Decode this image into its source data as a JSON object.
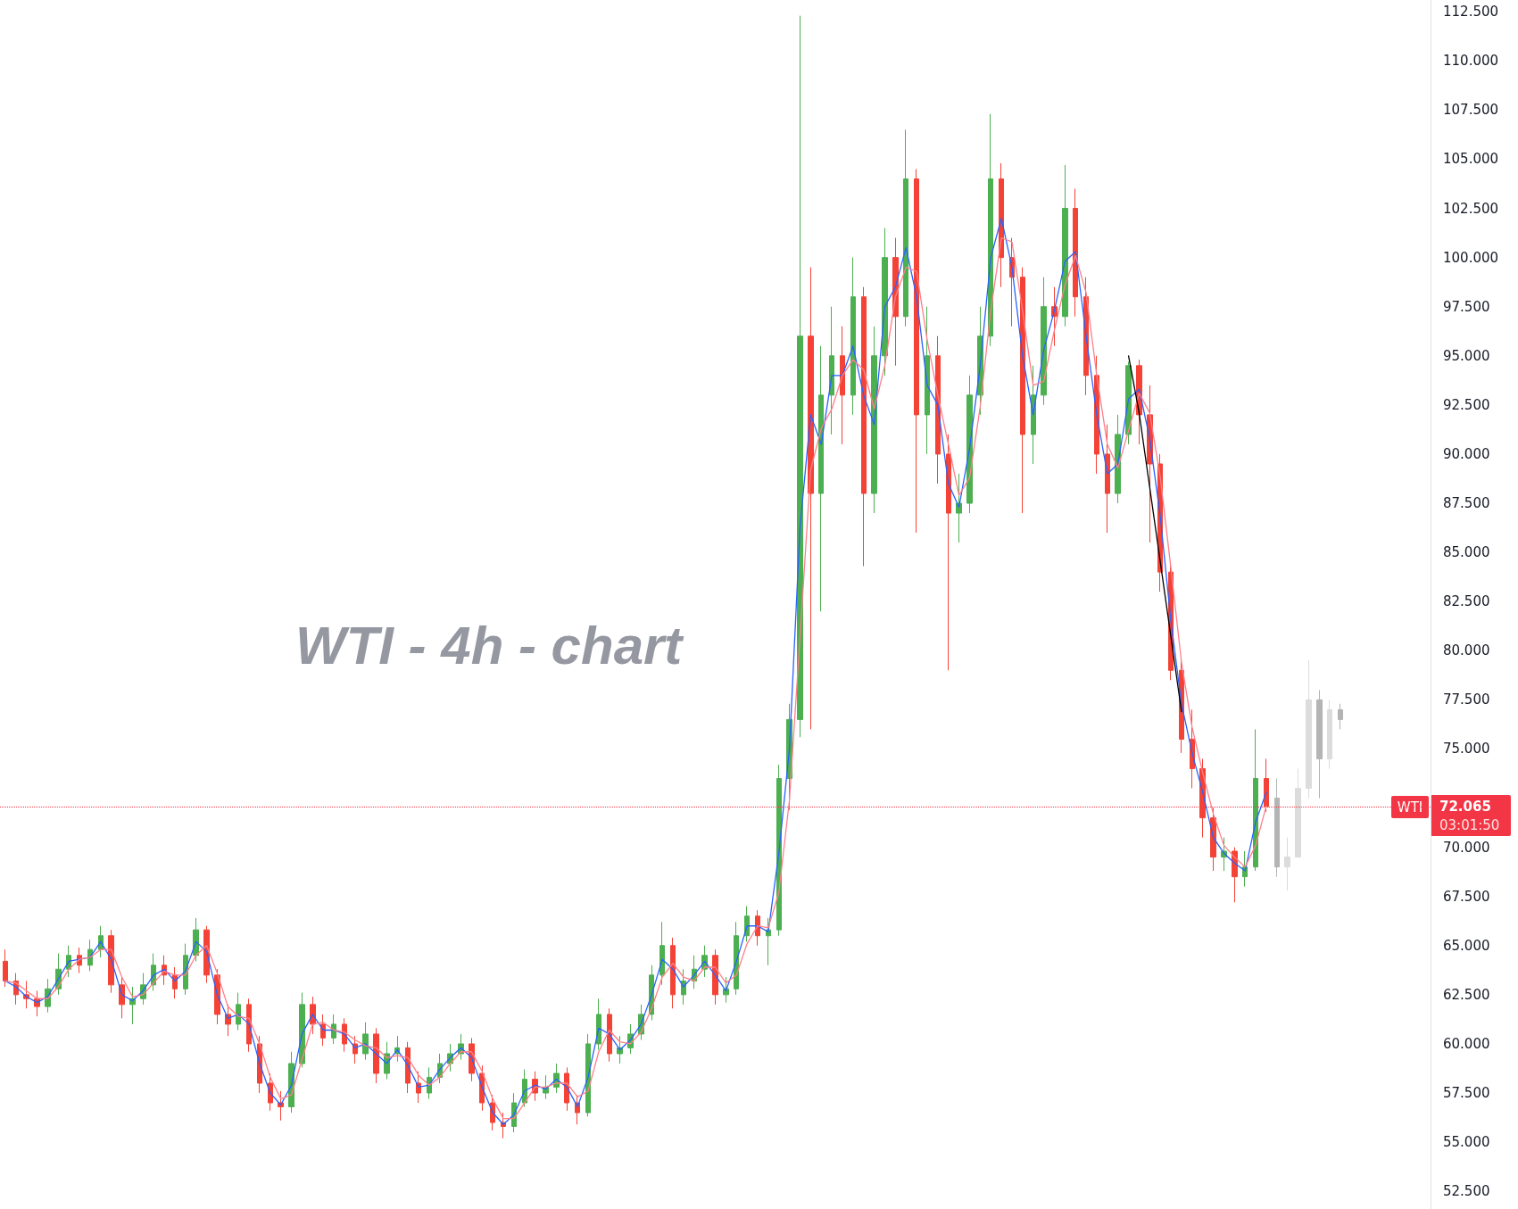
{
  "chart_data": {
    "type": "candlestick",
    "title": "WTI - 4h - chart",
    "categories": [
      null,
      null,
      null,
      null,
      null,
      null,
      null,
      null,
      null,
      null,
      null,
      null,
      null,
      null,
      null,
      null,
      null,
      null,
      null,
      null,
      null,
      null,
      null,
      null,
      null,
      null,
      null,
      null,
      null,
      null,
      null,
      null,
      null,
      null,
      null,
      null,
      null,
      null,
      null,
      null,
      null,
      null,
      null,
      null,
      null,
      null,
      null,
      null,
      null,
      null,
      null,
      null,
      null,
      null,
      null,
      null,
      null,
      null,
      null,
      null,
      null,
      null,
      null,
      null,
      null,
      null,
      null,
      null,
      null,
      null,
      null,
      null,
      null,
      null,
      null,
      null,
      null,
      null,
      null,
      null,
      null,
      null,
      null,
      null,
      null,
      null,
      null,
      null,
      null,
      null,
      null,
      null,
      null,
      null,
      null,
      null,
      null,
      null,
      null,
      null,
      null,
      null,
      null,
      null,
      null,
      null,
      null,
      null,
      null,
      null,
      null,
      null,
      null,
      null,
      null,
      null,
      null,
      null,
      null,
      null,
      null,
      null,
      null,
      null,
      null,
      null,
      null,
      null,
      null,
      null,
      null,
      null,
      null,
      null,
      null
    ],
    "series": [
      {
        "ohlc": [
          [
            64.2,
            64.8,
            62.9,
            63.2
          ],
          [
            63.2,
            63.6,
            62.0,
            62.5
          ],
          [
            62.5,
            63.2,
            61.8,
            62.3
          ],
          [
            62.3,
            62.7,
            61.4,
            61.9
          ],
          [
            61.9,
            63.3,
            61.6,
            62.8
          ],
          [
            62.8,
            64.6,
            62.5,
            63.8
          ],
          [
            63.8,
            65.0,
            63.4,
            64.5
          ],
          [
            64.5,
            64.9,
            63.6,
            64.0
          ],
          [
            64.0,
            65.3,
            63.7,
            64.8
          ],
          [
            64.8,
            66.0,
            64.4,
            65.5
          ],
          [
            65.5,
            65.8,
            62.6,
            63.0
          ],
          [
            63.0,
            63.4,
            61.3,
            62.0
          ],
          [
            62.0,
            62.9,
            61.0,
            62.3
          ],
          [
            62.3,
            63.6,
            62.0,
            63.0
          ],
          [
            63.0,
            64.6,
            62.7,
            64.0
          ],
          [
            64.0,
            64.5,
            63.0,
            63.5
          ],
          [
            63.5,
            63.9,
            62.3,
            62.8
          ],
          [
            62.8,
            65.1,
            62.5,
            64.5
          ],
          [
            64.5,
            66.4,
            64.2,
            65.8
          ],
          [
            65.8,
            66.0,
            63.1,
            63.5
          ],
          [
            63.5,
            63.8,
            61.0,
            61.5
          ],
          [
            61.5,
            62.0,
            60.4,
            61.0
          ],
          [
            61.0,
            62.6,
            60.7,
            62.0
          ],
          [
            62.0,
            62.3,
            59.6,
            60.0
          ],
          [
            60.0,
            60.4,
            57.5,
            58.0
          ],
          [
            58.0,
            58.5,
            56.6,
            57.0
          ],
          [
            57.0,
            57.6,
            56.1,
            56.8
          ],
          [
            56.8,
            59.6,
            56.5,
            59.0
          ],
          [
            59.0,
            62.6,
            58.8,
            62.0
          ],
          [
            62.0,
            62.4,
            60.5,
            61.0
          ],
          [
            61.0,
            61.5,
            59.9,
            60.3
          ],
          [
            60.3,
            61.5,
            60.0,
            61.0
          ],
          [
            61.0,
            61.3,
            59.6,
            60.0
          ],
          [
            60.0,
            60.4,
            59.0,
            59.5
          ],
          [
            59.5,
            61.1,
            59.2,
            60.5
          ],
          [
            60.5,
            60.8,
            58.0,
            58.5
          ],
          [
            58.5,
            60.1,
            58.2,
            59.5
          ],
          [
            59.5,
            60.4,
            59.1,
            59.8
          ],
          [
            59.8,
            60.1,
            57.5,
            58.0
          ],
          [
            58.0,
            58.6,
            57.0,
            57.5
          ],
          [
            57.5,
            58.8,
            57.2,
            58.3
          ],
          [
            58.3,
            59.5,
            58.0,
            59.0
          ],
          [
            59.0,
            60.0,
            58.6,
            59.5
          ],
          [
            59.5,
            60.5,
            59.2,
            60.0
          ],
          [
            60.0,
            60.3,
            58.1,
            58.5
          ],
          [
            58.5,
            58.9,
            56.6,
            57.0
          ],
          [
            57.0,
            57.4,
            55.6,
            56.0
          ],
          [
            56.0,
            56.5,
            55.2,
            55.8
          ],
          [
            55.8,
            57.5,
            55.5,
            57.0
          ],
          [
            57.0,
            58.7,
            56.8,
            58.2
          ],
          [
            58.2,
            58.6,
            57.1,
            57.5
          ],
          [
            57.5,
            58.4,
            57.2,
            57.8
          ],
          [
            57.8,
            59.0,
            57.5,
            58.5
          ],
          [
            58.5,
            58.8,
            56.6,
            57.0
          ],
          [
            57.0,
            57.4,
            55.9,
            56.5
          ],
          [
            56.5,
            60.5,
            56.3,
            60.0
          ],
          [
            60.0,
            62.3,
            59.7,
            61.5
          ],
          [
            61.5,
            61.8,
            59.1,
            59.5
          ],
          [
            59.5,
            60.4,
            59.0,
            59.8
          ],
          [
            59.8,
            61.0,
            59.5,
            60.5
          ],
          [
            60.5,
            62.0,
            60.2,
            61.5
          ],
          [
            61.5,
            64.0,
            61.2,
            63.5
          ],
          [
            63.5,
            66.2,
            63.0,
            65.0
          ],
          [
            65.0,
            65.4,
            61.8,
            62.5
          ],
          [
            62.5,
            63.8,
            62.0,
            63.2
          ],
          [
            63.2,
            64.5,
            62.8,
            63.8
          ],
          [
            63.8,
            65.0,
            63.4,
            64.5
          ],
          [
            64.5,
            64.8,
            62.0,
            62.5
          ],
          [
            62.5,
            63.4,
            62.1,
            62.8
          ],
          [
            62.8,
            66.2,
            62.5,
            65.5
          ],
          [
            65.5,
            67.0,
            65.2,
            66.5
          ],
          [
            66.5,
            66.8,
            65.0,
            65.5
          ],
          [
            65.5,
            66.4,
            64.0,
            65.8
          ],
          [
            65.8,
            74.2,
            65.5,
            73.5
          ],
          [
            73.5,
            77.3,
            71.9,
            76.5
          ],
          [
            76.5,
            112.3,
            75.6,
            96.0
          ],
          [
            96.0,
            99.5,
            76.0,
            88.0
          ],
          [
            88.0,
            95.5,
            82.0,
            93.0
          ],
          [
            93.0,
            97.5,
            91.0,
            95.0
          ],
          [
            95.0,
            96.5,
            90.5,
            93.0
          ],
          [
            93.0,
            100.0,
            92.0,
            98.0
          ],
          [
            98.0,
            98.5,
            84.3,
            88.0
          ],
          [
            88.0,
            96.5,
            87.0,
            95.0
          ],
          [
            95.0,
            101.5,
            94.0,
            100.0
          ],
          [
            100.0,
            101.0,
            94.5,
            97.0
          ],
          [
            97.0,
            106.5,
            96.5,
            104.0
          ],
          [
            104.0,
            104.5,
            86.0,
            92.0
          ],
          [
            92.0,
            97.5,
            90.0,
            95.0
          ],
          [
            95.0,
            96.0,
            88.5,
            90.0
          ],
          [
            90.0,
            91.0,
            79.0,
            87.0
          ],
          [
            87.0,
            89.0,
            85.5,
            87.5
          ],
          [
            87.5,
            94.0,
            87.0,
            93.0
          ],
          [
            93.0,
            97.5,
            92.0,
            96.0
          ],
          [
            96.0,
            107.3,
            95.5,
            104.0
          ],
          [
            104.0,
            104.8,
            98.5,
            100.0
          ],
          [
            100.0,
            101.0,
            96.5,
            99.0
          ],
          [
            99.0,
            99.5,
            87.0,
            91.0
          ],
          [
            91.0,
            94.5,
            89.5,
            93.0
          ],
          [
            93.0,
            99.0,
            92.5,
            97.5
          ],
          [
            97.5,
            98.5,
            95.5,
            97.0
          ],
          [
            97.0,
            104.7,
            96.5,
            102.5
          ],
          [
            102.5,
            103.5,
            97.0,
            98.0
          ],
          [
            98.0,
            99.0,
            93.0,
            94.0
          ],
          [
            94.0,
            95.0,
            89.0,
            90.0
          ],
          [
            90.0,
            91.5,
            86.0,
            88.0
          ],
          [
            88.0,
            92.0,
            87.5,
            91.0
          ],
          [
            91.0,
            94.7,
            90.5,
            94.5
          ],
          [
            94.5,
            94.8,
            90.5,
            92.0
          ],
          [
            92.0,
            93.5,
            85.5,
            89.5
          ],
          [
            89.5,
            90.0,
            83.0,
            84.0
          ],
          [
            84.0,
            84.5,
            78.5,
            79.0
          ],
          [
            79.0,
            79.5,
            74.8,
            75.5
          ],
          [
            75.5,
            77.0,
            73.0,
            74.0
          ],
          [
            74.0,
            74.5,
            70.5,
            71.5
          ],
          [
            71.5,
            72.0,
            68.8,
            69.5
          ],
          [
            69.5,
            70.5,
            68.8,
            69.8
          ],
          [
            69.8,
            70.0,
            67.2,
            68.5
          ],
          [
            68.5,
            69.8,
            68.0,
            69.0
          ],
          [
            69.0,
            76.0,
            68.8,
            73.5
          ],
          [
            73.5,
            74.5,
            71.8,
            72.065
          ],
          null,
          null,
          null,
          null,
          null,
          null,
          null,
          null,
          null,
          null,
          null,
          null,
          null,
          null,
          null
        ],
        "colors": [
          "#f44336",
          "#f44336",
          "#f44336",
          "#f44336",
          "#4caf50",
          "#4caf50",
          "#4caf50",
          "#f44336",
          "#4caf50",
          "#4caf50",
          "#f44336",
          "#f44336",
          "#4caf50",
          "#4caf50",
          "#4caf50",
          "#f44336",
          "#f44336",
          "#4caf50",
          "#4caf50",
          "#f44336",
          "#f44336",
          "#f44336",
          "#4caf50",
          "#f44336",
          "#f44336",
          "#f44336",
          "#f44336",
          "#4caf50",
          "#4caf50",
          "#f44336",
          "#f44336",
          "#4caf50",
          "#f44336",
          "#f44336",
          "#4caf50",
          "#f44336",
          "#4caf50",
          "#4caf50",
          "#f44336",
          "#f44336",
          "#4caf50",
          "#4caf50",
          "#4caf50",
          "#4caf50",
          "#f44336",
          "#f44336",
          "#f44336",
          "#f44336",
          "#4caf50",
          "#4caf50",
          "#f44336",
          "#4caf50",
          "#4caf50",
          "#f44336",
          "#f44336",
          "#4caf50",
          "#4caf50",
          "#f44336",
          "#4caf50",
          "#4caf50",
          "#4caf50",
          "#4caf50",
          "#4caf50",
          "#f44336",
          "#4caf50",
          "#4caf50",
          "#4caf50",
          "#f44336",
          "#4caf50",
          "#4caf50",
          "#4caf50",
          "#f44336",
          "#4caf50",
          "#4caf50",
          "#4caf50",
          "#4caf50",
          "#f44336",
          "#4caf50",
          "#4caf50",
          "#f44336",
          "#4caf50",
          "#f44336",
          "#4caf50",
          "#4caf50",
          "#f44336",
          "#4caf50",
          "#f44336",
          "#4caf50",
          "#f44336",
          "#f44336",
          "#4caf50",
          "#4caf50",
          "#4caf50",
          "#4caf50",
          "#f44336",
          "#f44336",
          "#f44336",
          "#4caf50",
          "#4caf50",
          "#f44336",
          "#4caf50",
          "#f44336",
          "#f44336",
          "#f44336",
          "#f44336",
          "#4caf50",
          "#4caf50",
          "#f44336",
          "#f44336",
          "#f44336",
          "#f44336",
          "#f44336",
          "#f44336",
          "#f44336",
          "#f44336",
          "#4caf50",
          "#f44336",
          "#4caf50",
          "#4caf50",
          "#f44336",
          null,
          null,
          null,
          null,
          null,
          null,
          null,
          null,
          null,
          null,
          null,
          null,
          null,
          null,
          null
        ]
      },
      {
        "ohlc": [
          null,
          null,
          null,
          null,
          null,
          null,
          null,
          null,
          null,
          null,
          null,
          null,
          null,
          null,
          null,
          null,
          null,
          null,
          null,
          null,
          null,
          null,
          null,
          null,
          null,
          null,
          null,
          null,
          null,
          null,
          null,
          null,
          null,
          null,
          null,
          null,
          null,
          null,
          null,
          null,
          null,
          null,
          null,
          null,
          null,
          null,
          null,
          null,
          null,
          null,
          null,
          null,
          null,
          null,
          null,
          null,
          null,
          null,
          null,
          null,
          null,
          null,
          null,
          null,
          null,
          null,
          null,
          null,
          null,
          null,
          null,
          null,
          null,
          null,
          null,
          null,
          null,
          null,
          null,
          null,
          null,
          null,
          null,
          null,
          null,
          null,
          null,
          null,
          null,
          null,
          null,
          null,
          null,
          null,
          null,
          null,
          null,
          null,
          null,
          null,
          null,
          null,
          null,
          null,
          null,
          null,
          null,
          null,
          null,
          null,
          null,
          null,
          null,
          null,
          null,
          null,
          null,
          null,
          null,
          null,
          [
            72.5,
            73.5,
            68.5,
            69.0
          ],
          [
            69.0,
            70.5,
            67.8,
            69.5
          ],
          [
            69.5,
            74.0,
            69.5,
            73.0
          ],
          [
            73.0,
            79.5,
            72.5,
            77.5
          ],
          [
            77.5,
            78.0,
            72.5,
            74.5
          ],
          [
            74.5,
            77.5,
            74.0,
            77.0
          ],
          [
            77.0,
            77.3,
            76.0,
            76.5
          ],
          null,
          null,
          null,
          null,
          null,
          null,
          null,
          null
        ],
        "colors": [
          null,
          null,
          null,
          null,
          null,
          null,
          null,
          null,
          null,
          null,
          null,
          null,
          null,
          null,
          null,
          null,
          null,
          null,
          null,
          null,
          null,
          null,
          null,
          null,
          null,
          null,
          null,
          null,
          null,
          null,
          null,
          null,
          null,
          null,
          null,
          null,
          null,
          null,
          null,
          null,
          null,
          null,
          null,
          null,
          null,
          null,
          null,
          null,
          null,
          null,
          null,
          null,
          null,
          null,
          null,
          null,
          null,
          null,
          null,
          null,
          null,
          null,
          null,
          null,
          null,
          null,
          null,
          null,
          null,
          null,
          null,
          null,
          null,
          null,
          null,
          null,
          null,
          null,
          null,
          null,
          null,
          null,
          null,
          null,
          null,
          null,
          null,
          null,
          null,
          null,
          null,
          null,
          null,
          null,
          null,
          null,
          null,
          null,
          null,
          null,
          null,
          null,
          null,
          null,
          null,
          null,
          null,
          null,
          null,
          null,
          null,
          null,
          null,
          null,
          null,
          null,
          null,
          null,
          null,
          null,
          "#b4b4b4",
          "#dcdcdc",
          "#dcdcdc",
          "#dcdcdc",
          "#b4b4b4",
          "#dcdcdc",
          "#b4b4b4",
          null,
          null,
          null,
          null,
          null,
          null,
          null,
          null
        ]
      },
      {
        "type": "line",
        "color": "#2962ff",
        "values": [
          63.2,
          62.9,
          62.4,
          62.1,
          62.4,
          63.3,
          64.2,
          64.3,
          64.4,
          65.2,
          64.3,
          62.5,
          62.2,
          62.7,
          63.5,
          63.8,
          63.2,
          63.7,
          65.2,
          64.7,
          62.5,
          61.3,
          61.5,
          61.0,
          59.0,
          57.5,
          56.9,
          57.9,
          60.5,
          61.5,
          60.7,
          60.7,
          60.5,
          59.8,
          60.0,
          59.5,
          59.0,
          59.7,
          58.9,
          57.8,
          57.9,
          58.7,
          59.3,
          59.8,
          59.3,
          57.8,
          56.5,
          55.9,
          56.4,
          57.6,
          57.9,
          57.7,
          58.2,
          57.8,
          56.8,
          58.3,
          60.8,
          60.5,
          59.7,
          60.2,
          61.0,
          62.5,
          64.3,
          63.8,
          62.9,
          63.5,
          64.2,
          63.5,
          62.7,
          64.2,
          66.0,
          66.0,
          65.7,
          69.7,
          75.0,
          86.3,
          92.0,
          90.5,
          94.0,
          94.0,
          95.5,
          93.0,
          91.5,
          97.5,
          98.5,
          100.5,
          98.0,
          93.5,
          92.5,
          88.5,
          87.3,
          90.3,
          94.5,
          100.0,
          102.0,
          99.5,
          95.0,
          92.0,
          95.3,
          97.3,
          99.8,
          100.3,
          96.0,
          92.0,
          89.0,
          89.5,
          92.8,
          93.3,
          90.8,
          86.8,
          81.5,
          77.3,
          74.8,
          72.8,
          70.5,
          69.7,
          69.2,
          68.8,
          71.3,
          72.8,
          null,
          null,
          null,
          null,
          null,
          null,
          null,
          null,
          null,
          null,
          null,
          null,
          null,
          null,
          null
        ]
      },
      {
        "type": "line",
        "color": "#ff7f8a",
        "values": [
          63.2,
          63.1,
          62.7,
          62.3,
          62.3,
          62.9,
          63.8,
          64.3,
          64.4,
          64.8,
          64.8,
          63.4,
          62.4,
          62.5,
          63.1,
          63.7,
          63.5,
          63.5,
          64.5,
          65.0,
          63.6,
          61.9,
          61.4,
          61.3,
          60.0,
          58.3,
          57.2,
          57.4,
          59.2,
          61.0,
          61.1,
          60.7,
          60.6,
          60.2,
          59.9,
          59.8,
          59.3,
          59.4,
          59.3,
          58.4,
          57.9,
          58.3,
          59.0,
          59.6,
          59.6,
          58.6,
          57.2,
          56.2,
          56.2,
          57.0,
          57.8,
          57.8,
          58.0,
          58.0,
          57.3,
          57.6,
          59.6,
          60.7,
          60.1,
          60.0,
          60.6,
          61.8,
          63.4,
          64.1,
          63.4,
          63.2,
          63.9,
          63.9,
          63.1,
          63.5,
          65.1,
          66.0,
          65.9,
          67.7,
          72.4,
          80.7,
          89.2,
          91.3,
          92.3,
          94.0,
          94.8,
          94.3,
          92.3,
          94.5,
          98.0,
          99.5,
          99.3,
          95.8,
          93.0,
          90.5,
          87.9,
          88.8,
          92.4,
          97.3,
          101.0,
          100.8,
          97.3,
          93.5,
          93.7,
          96.3,
          98.6,
          100.1,
          98.2,
          94.0,
          90.5,
          89.3,
          91.2,
          93.1,
          92.1,
          88.8,
          84.2,
          79.4,
          76.1,
          73.8,
          71.7,
          70.1,
          69.5,
          69.0,
          70.1,
          72.1,
          null,
          null,
          null,
          null,
          null,
          null,
          null,
          null,
          null,
          null,
          null,
          null,
          null,
          null,
          null
        ]
      },
      {
        "type": "line",
        "color": "#000000",
        "values": [
          null,
          null,
          null,
          null,
          null,
          null,
          null,
          null,
          null,
          null,
          null,
          null,
          null,
          null,
          null,
          null,
          null,
          null,
          null,
          null,
          null,
          null,
          null,
          null,
          null,
          null,
          null,
          null,
          null,
          null,
          null,
          null,
          null,
          null,
          null,
          null,
          null,
          null,
          null,
          null,
          null,
          null,
          null,
          null,
          null,
          null,
          null,
          null,
          null,
          null,
          null,
          null,
          null,
          null,
          null,
          null,
          null,
          null,
          null,
          null,
          null,
          null,
          null,
          null,
          null,
          null,
          null,
          null,
          null,
          null,
          null,
          null,
          null,
          null,
          null,
          null,
          null,
          null,
          null,
          null,
          null,
          null,
          null,
          null,
          null,
          null,
          null,
          null,
          null,
          null,
          null,
          null,
          null,
          null,
          null,
          null,
          null,
          null,
          null,
          null,
          null,
          null,
          null,
          null,
          null,
          null,
          95.0,
          92.1,
          88.3,
          84.5,
          80.7,
          76.9,
          null,
          null,
          null,
          null,
          null,
          null,
          null,
          null,
          null,
          null,
          null,
          null,
          null,
          null,
          null,
          null,
          null,
          null,
          null,
          null,
          null,
          null,
          null
        ]
      }
    ],
    "ylim": [
      51.6,
      113.1
    ],
    "yticks": [
      {
        "value": 52.5,
        "label": "52.500"
      },
      {
        "value": 55,
        "label": "55.000"
      },
      {
        "value": 57.5,
        "label": "57.500"
      },
      {
        "value": 60,
        "label": "60.000"
      },
      {
        "value": 62.5,
        "label": "62.500"
      },
      {
        "value": 65,
        "label": "65.000"
      },
      {
        "value": 67.5,
        "label": "67.500"
      },
      {
        "value": 70,
        "label": "70.000"
      },
      {
        "value": 75,
        "label": "75.000"
      },
      {
        "value": 77.5,
        "label": "77.500"
      },
      {
        "value": 80,
        "label": "80.000"
      },
      {
        "value": 82.5,
        "label": "82.500"
      },
      {
        "value": 85,
        "label": "85.000"
      },
      {
        "value": 87.5,
        "label": "87.500"
      },
      {
        "value": 90,
        "label": "90.000"
      },
      {
        "value": 92.5,
        "label": "92.500"
      },
      {
        "value": 95,
        "label": "95.000"
      },
      {
        "value": 97.5,
        "label": "97.500"
      },
      {
        "value": 100,
        "label": "100.000"
      },
      {
        "value": 102.5,
        "label": "102.500"
      },
      {
        "value": 105,
        "label": "105.000"
      },
      {
        "value": 107.5,
        "label": "107.500"
      },
      {
        "value": 110,
        "label": "110.000"
      },
      {
        "value": 112.5,
        "label": "112.500"
      }
    ],
    "tick_labels": "y",
    "ref_lines": [
      {
        "axis": "y",
        "value": 72.065,
        "label": "72.065",
        "color": "#f23645",
        "line_style": "dotted"
      }
    ],
    "annotations": [
      {
        "text": "WTI",
        "y": 72.065
      },
      "03:01:50"
    ]
  }
}
